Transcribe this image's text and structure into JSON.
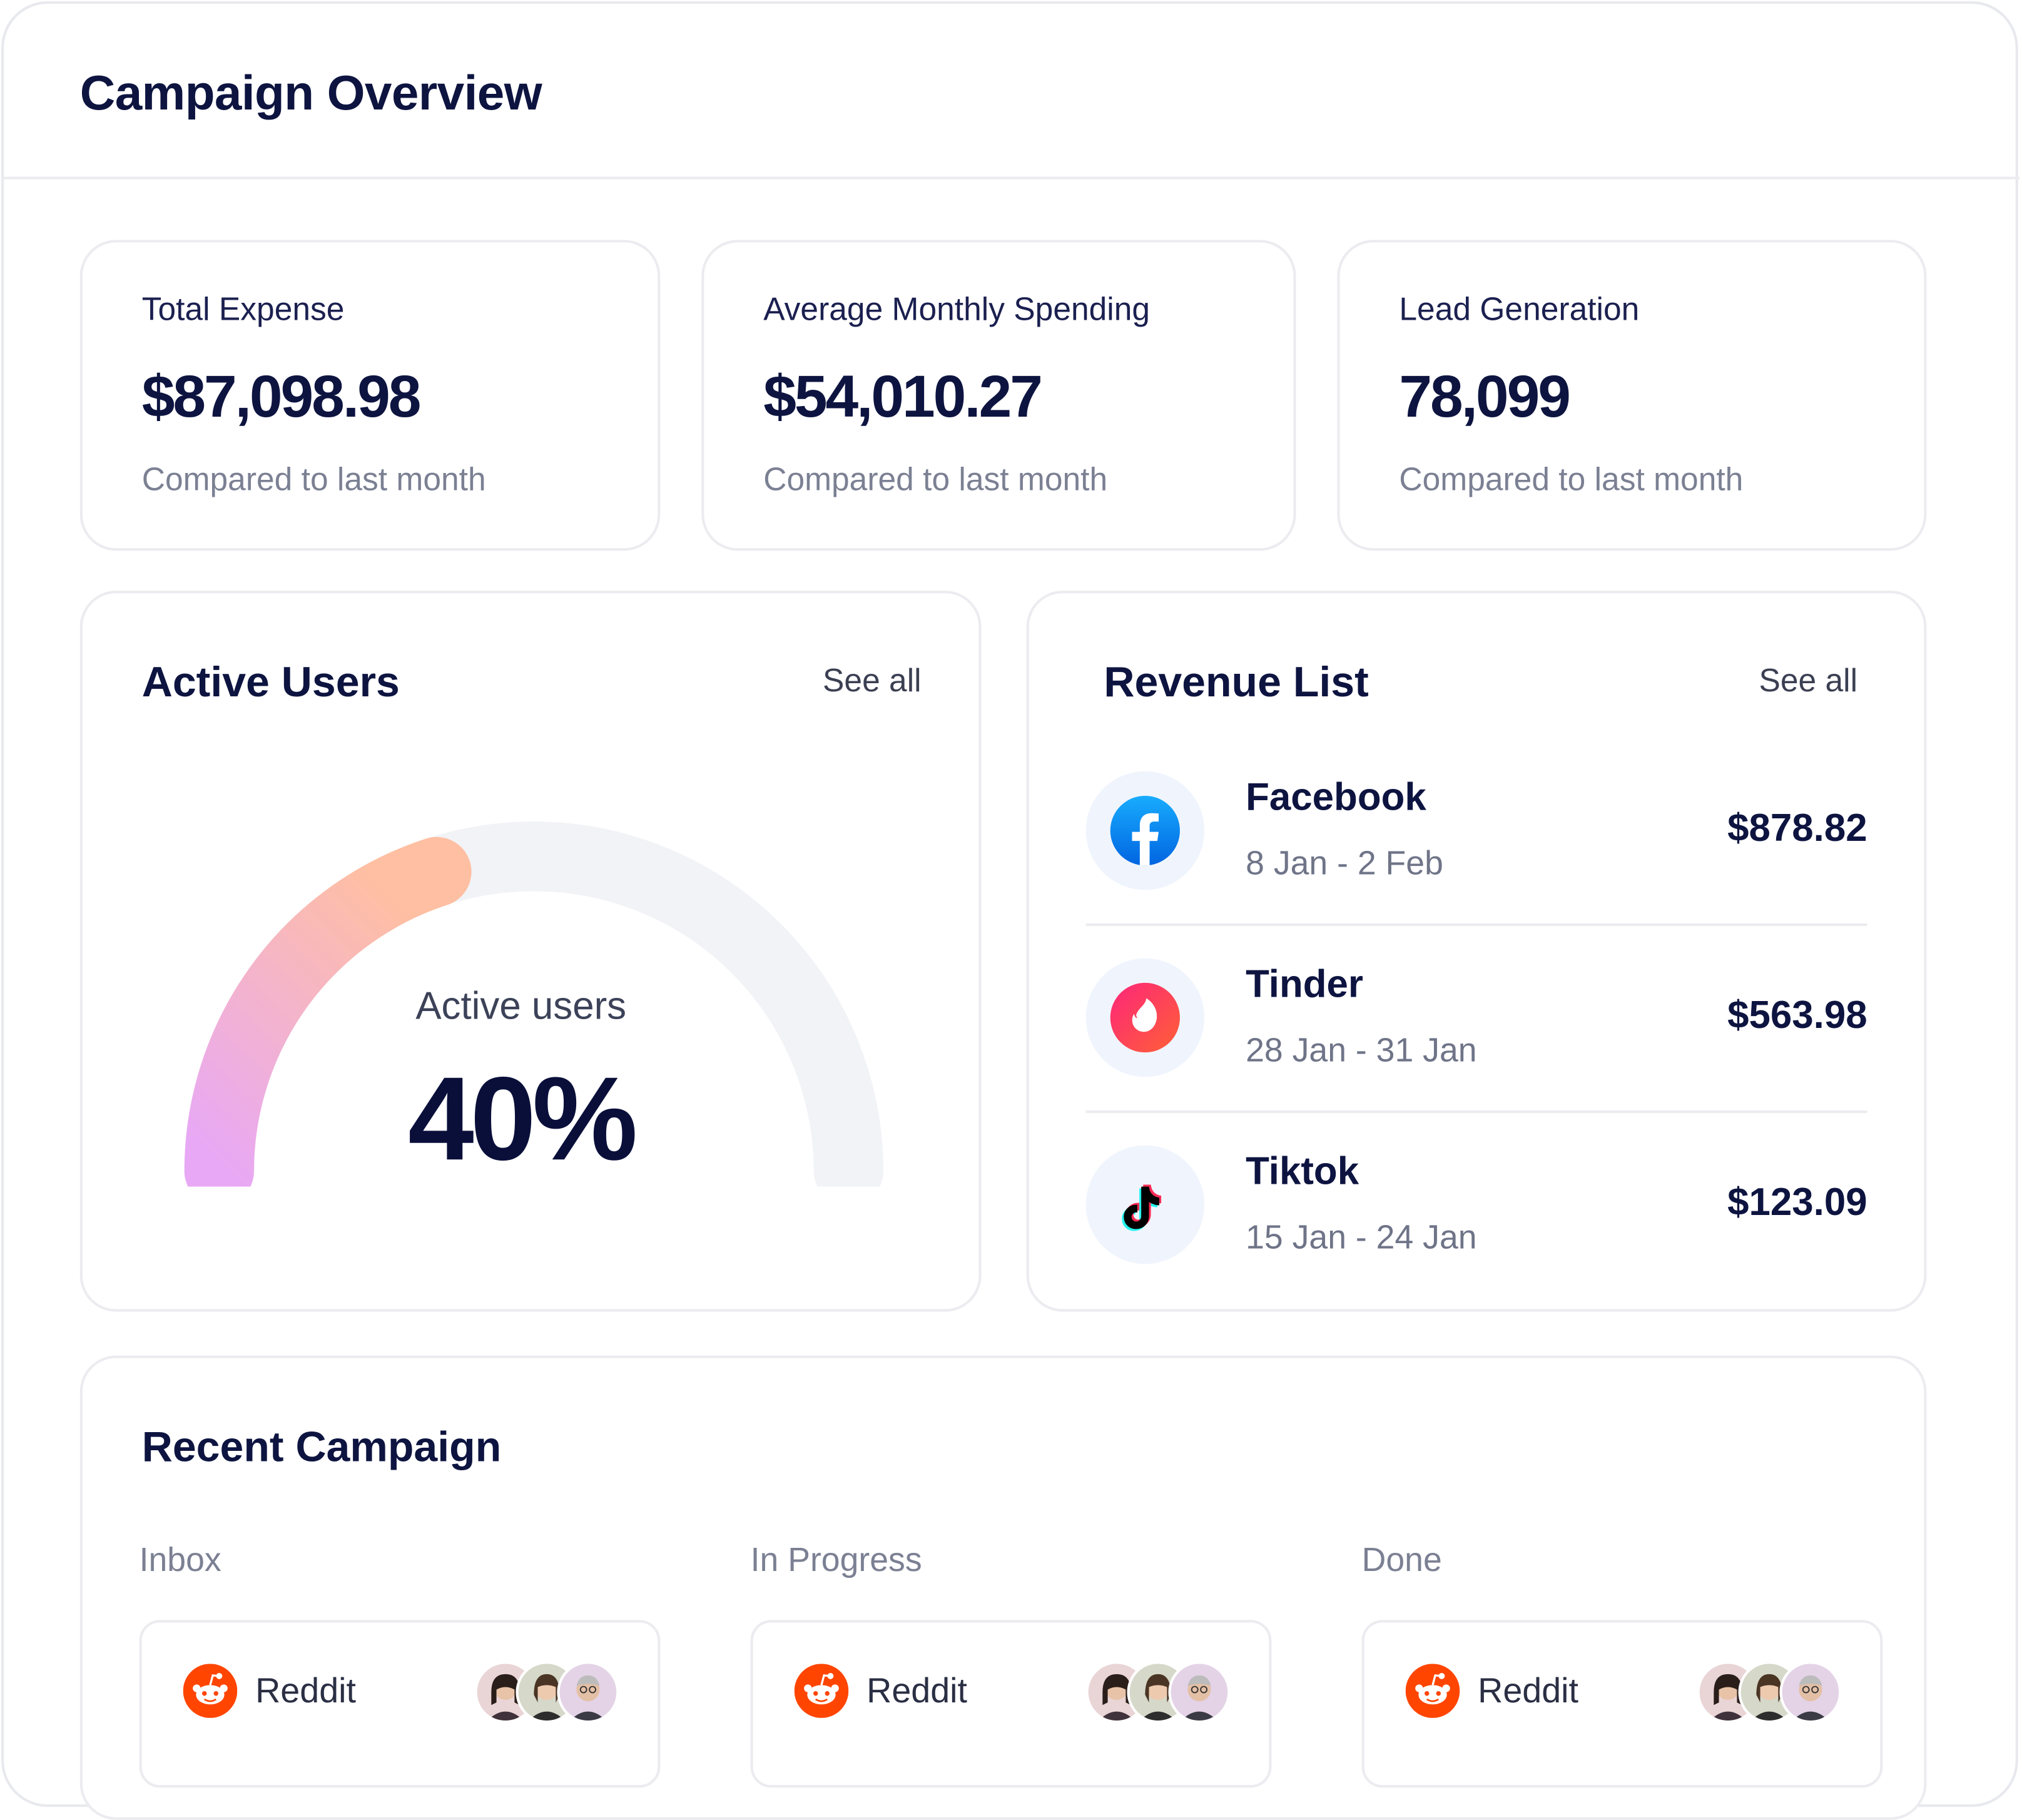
{
  "page": {
    "title": "Campaign Overview"
  },
  "stats": [
    {
      "label": "Total Expense",
      "value": "$87,098.98",
      "sub": "Compared to last month"
    },
    {
      "label": "Average Monthly Spending",
      "value": "$54,010.27",
      "sub": "Compared to last month"
    },
    {
      "label": "Lead Generation",
      "value": "78,099",
      "sub": "Compared to last month"
    }
  ],
  "active_users": {
    "title": "Active Users",
    "see_all": "See all",
    "gauge_label": "Active users",
    "gauge_value": "40%",
    "progress": 0.4,
    "colors": {
      "gradient_start": "#e8a8f6",
      "gradient_end": "#ffbfa2",
      "track": "#f2f3f7"
    }
  },
  "revenue": {
    "title": "Revenue List",
    "see_all": "See all",
    "items": [
      {
        "name": "Facebook",
        "date": "8 Jan - 2 Feb",
        "amount": "$878.82",
        "icon": "facebook-icon"
      },
      {
        "name": "Tinder",
        "date": "28 Jan - 31 Jan",
        "amount": "$563.98",
        "icon": "tinder-icon"
      },
      {
        "name": "Tiktok",
        "date": "15 Jan - 24 Jan",
        "amount": "$123.09",
        "icon": "tiktok-icon"
      }
    ]
  },
  "recent": {
    "title": "Recent Campaign",
    "columns": [
      {
        "label": "Inbox",
        "card": {
          "name": "Reddit",
          "icon": "reddit-icon"
        }
      },
      {
        "label": "In Progress",
        "card": {
          "name": "Reddit",
          "icon": "reddit-icon"
        }
      },
      {
        "label": "Done",
        "card": {
          "name": "Reddit",
          "icon": "reddit-icon"
        }
      }
    ]
  }
}
